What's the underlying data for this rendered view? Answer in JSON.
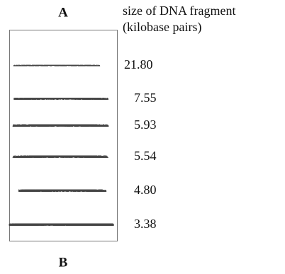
{
  "lane": {
    "top_label": "A",
    "bottom_label": "B"
  },
  "header": {
    "line1": "size of DNA fragment",
    "line2": "(kilobase pairs)"
  },
  "bands": [
    {
      "label": "21.80"
    },
    {
      "label": "7.55"
    },
    {
      "label": "5.93"
    },
    {
      "label": "5.54"
    },
    {
      "label": "4.80"
    },
    {
      "label": "3.38"
    }
  ]
}
